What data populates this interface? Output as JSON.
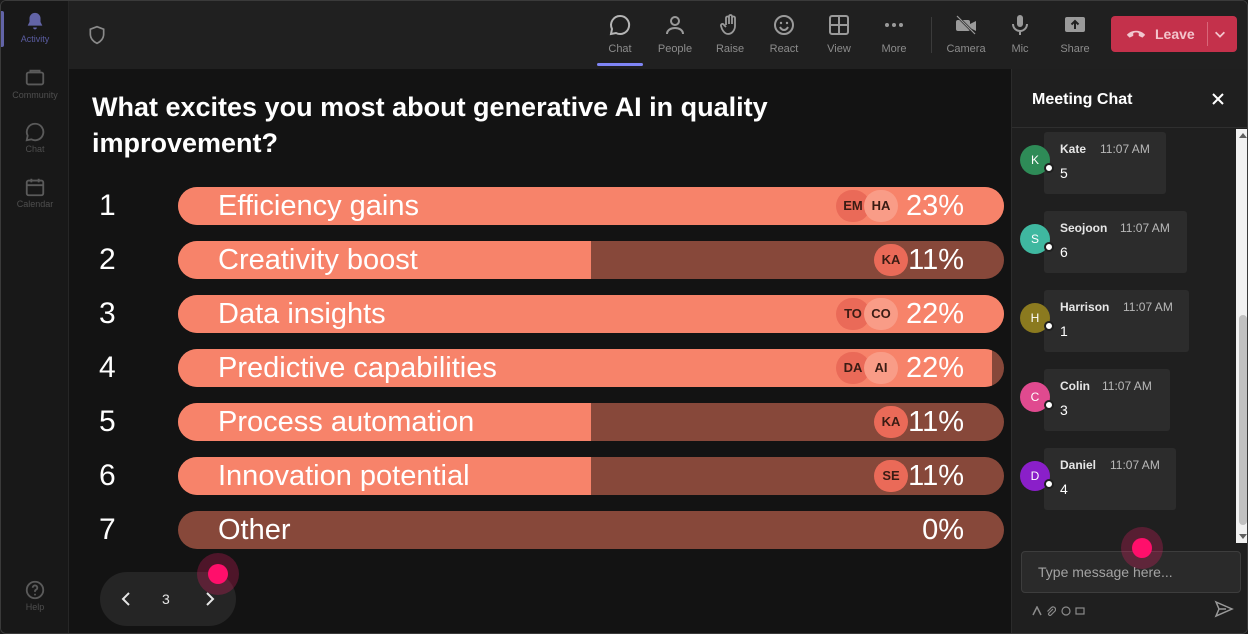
{
  "rail": {
    "items": [
      {
        "label": "Activity",
        "icon": "bell-icon"
      },
      {
        "label": "Community",
        "icon": "community-icon"
      },
      {
        "label": "Chat",
        "icon": "chat-icon"
      },
      {
        "label": "Calendar",
        "icon": "calendar-icon"
      }
    ],
    "help_label": "Help"
  },
  "topbar": {
    "buttons": [
      {
        "label": "Chat",
        "icon": "chat-icon"
      },
      {
        "label": "People",
        "icon": "people-icon"
      },
      {
        "label": "Raise",
        "icon": "raise-hand-icon"
      },
      {
        "label": "React",
        "icon": "react-icon"
      },
      {
        "label": "View",
        "icon": "view-icon"
      },
      {
        "label": "More",
        "icon": "more-icon"
      },
      {
        "label": "Camera",
        "icon": "camera-off-icon"
      },
      {
        "label": "Mic",
        "icon": "mic-icon"
      },
      {
        "label": "Share",
        "icon": "share-icon"
      }
    ],
    "leave_label": "Leave"
  },
  "poll": {
    "question": "What excites you most about generative AI in quality improvement?",
    "options": [
      {
        "num": "1",
        "label": "Efficiency gains",
        "pct": "23%",
        "fill": 1.0,
        "avatars": [
          "EM",
          "HA"
        ]
      },
      {
        "num": "2",
        "label": "Creativity boost",
        "pct": "11%",
        "fill": 0.5,
        "avatars": [
          "KA"
        ]
      },
      {
        "num": "3",
        "label": "Data insights",
        "pct": "22%",
        "fill": 1.0,
        "avatars": [
          "TO",
          "CO"
        ]
      },
      {
        "num": "4",
        "label": "Predictive capabilities",
        "pct": "22%",
        "fill": 0.985,
        "avatars": [
          "DA",
          "AI"
        ]
      },
      {
        "num": "5",
        "label": "Process automation",
        "pct": "11%",
        "fill": 0.5,
        "avatars": [
          "KA"
        ]
      },
      {
        "num": "6",
        "label": "Innovation potential",
        "pct": "11%",
        "fill": 0.5,
        "avatars": [
          "SE"
        ]
      },
      {
        "num": "7",
        "label": "Other",
        "pct": "0%",
        "fill": 0.0,
        "avatars": []
      }
    ],
    "page": "3"
  },
  "chat": {
    "title": "Meeting Chat",
    "messages": [
      {
        "initial": "K",
        "name": "Kate",
        "time": "11:07 AM",
        "text": "5",
        "color": "#2e8b57"
      },
      {
        "initial": "S",
        "name": "Seojoon",
        "time": "11:07 AM",
        "text": "6",
        "color": "#3fb8a0"
      },
      {
        "initial": "H",
        "name": "Harrison",
        "time": "11:07 AM",
        "text": "1",
        "color": "#8b7a1f"
      },
      {
        "initial": "C",
        "name": "Colin",
        "time": "11:07 AM",
        "text": "3",
        "color": "#e04a8f"
      },
      {
        "initial": "D",
        "name": "Daniel",
        "time": "11:07 AM",
        "text": "4",
        "color": "#8a1fc9"
      }
    ],
    "compose_placeholder": "Type message here..."
  },
  "colors": {
    "accent": "#6264a7",
    "leave": "#c4314b",
    "bar_fill": "#f7836a",
    "bar_track": "#87483a"
  }
}
